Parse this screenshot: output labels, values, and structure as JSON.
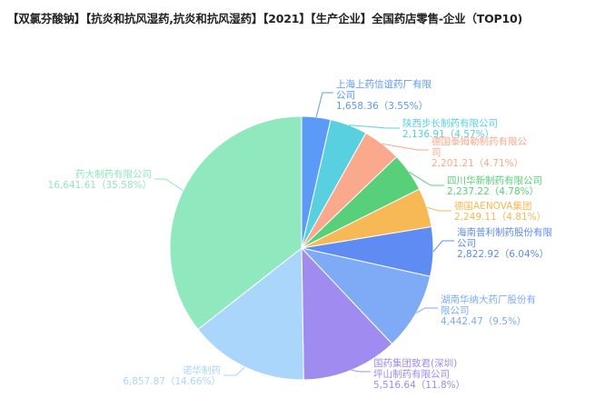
{
  "chart_data": {
    "type": "pie",
    "title": "【双氯芬酸钠】【抗炎和抗风湿药,抗炎和抗风湿药】【2021】【生产企业】全国药店零售-企业（TOP10)",
    "slices": [
      {
        "name": "上海上药信谊药厂有限公司",
        "value": 1658.36,
        "percent": "3.55%",
        "value_label": "1,658.36",
        "color": "#5B9BF7"
      },
      {
        "name": "陕西步长制药有限公司",
        "value": 2136.91,
        "percent": "4.57%",
        "value_label": "2,136.91",
        "color": "#58D0E0"
      },
      {
        "name": "德国泰姆勒制药有限公司",
        "value": 2201.21,
        "percent": "4.71%",
        "value_label": "2,201.21",
        "color": "#FBA98C"
      },
      {
        "name": "四川华新制药有限公司",
        "value": 2237.22,
        "percent": "4.78%",
        "value_label": "2,237.22",
        "color": "#58D07A"
      },
      {
        "name": "德国AENOVA集团",
        "value": 2249.11,
        "percent": "4.81%",
        "value_label": "2,249.11",
        "color": "#F7B955"
      },
      {
        "name": "海南普利制药股份有限公司",
        "value": 2822.92,
        "percent": "6.04%",
        "value_label": "2,822.92",
        "color": "#5F8CF2"
      },
      {
        "name": "湖南华纳大药厂股份有限公司",
        "value": 4442.47,
        "percent": "9.5%",
        "value_label": "4,442.47",
        "color": "#7EAAF6"
      },
      {
        "name": "国药集团致君(深圳)坪山制药有限公司",
        "value": 5516.64,
        "percent": "11.8%",
        "value_label": "5,516.64",
        "color": "#A08BF0"
      },
      {
        "name": "诺华制药",
        "value": 6857.87,
        "percent": "14.66%",
        "value_label": "6,857.87",
        "color": "#ABD6FB"
      },
      {
        "name": "药大制药有限公司",
        "value": 16641.61,
        "percent": "35.58%",
        "value_label": "16,641.61",
        "color": "#8FE8BE"
      }
    ]
  }
}
